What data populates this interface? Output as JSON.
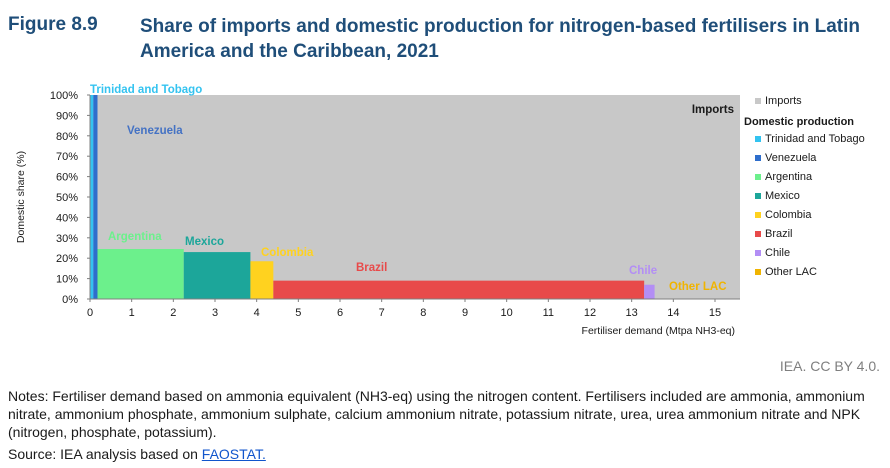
{
  "header": {
    "figure_label": "Figure 8.9",
    "title": "Share of imports and domestic production for nitrogen-based fertilisers in Latin America and the Caribbean, 2021"
  },
  "credit": "IEA. CC BY 4.0.",
  "notes": "Notes: Fertiliser demand based on ammonia equivalent (NH3-eq) using the nitrogen content. Fertilisers included are ammonia, ammonium nitrate, ammonium phosphate, ammonium sulphate, calcium ammonium nitrate, potassium nitrate, urea, urea ammonium nitrate and NPK (nitrogen, phosphate, potassium).",
  "source": {
    "prefix": "Source: IEA analysis based on ",
    "link": "FAOSTAT."
  },
  "chart_data": {
    "type": "area",
    "subtype": "variable-width stacked share (marimekko)",
    "ylabel": "Domestic share (%)",
    "xlabel": "Fertiliser demand (Mtpa NH3-eq)",
    "ylim": [
      0,
      100
    ],
    "xlim": [
      0,
      15.6
    ],
    "yticks": [
      "0%",
      "10%",
      "20%",
      "30%",
      "40%",
      "50%",
      "60%",
      "70%",
      "80%",
      "90%",
      "100%"
    ],
    "xticks": [
      "0",
      "1",
      "2",
      "3",
      "4",
      "5",
      "6",
      "7",
      "8",
      "9",
      "10",
      "11",
      "12",
      "13",
      "14",
      "15"
    ],
    "grid": false,
    "legend_position": "right",
    "imports": {
      "name": "Imports",
      "color": "#c8c8c8",
      "label": "Imports"
    },
    "legend_heading": "Domestic production",
    "series": [
      {
        "name": "Trinidad and Tobago",
        "color": "#33c3f0",
        "x_start": 0.0,
        "x_end": 0.08,
        "domestic_share": 100,
        "label_color": "#33c3f0"
      },
      {
        "name": "Venezuela",
        "color": "#2e6ecc",
        "x_start": 0.08,
        "x_end": 0.18,
        "domestic_share": 100,
        "label_color": "#4472c4"
      },
      {
        "name": "Argentina",
        "color": "#6cf08c",
        "x_start": 0.18,
        "x_end": 2.25,
        "domestic_share": 24.5,
        "label_color": "#6cf08c"
      },
      {
        "name": "Mexico",
        "color": "#1ca69a",
        "x_start": 2.25,
        "x_end": 3.85,
        "domestic_share": 23,
        "label_color": "#1ca69a"
      },
      {
        "name": "Colombia",
        "color": "#ffd21f",
        "x_start": 3.85,
        "x_end": 4.4,
        "domestic_share": 18.5,
        "label_color": "#ffd21f"
      },
      {
        "name": "Brazil",
        "color": "#e84a4a",
        "x_start": 4.4,
        "x_end": 13.3,
        "domestic_share": 9,
        "label_color": "#e84a4a"
      },
      {
        "name": "Chile",
        "color": "#b38ef5",
        "x_start": 13.3,
        "x_end": 13.55,
        "domestic_share": 7,
        "label_color": "#b38ef5"
      },
      {
        "name": "Other LAC",
        "color": "#f0b400",
        "x_start": 13.55,
        "x_end": 15.6,
        "domestic_share": 0,
        "label_color": "#f0b400"
      }
    ]
  }
}
